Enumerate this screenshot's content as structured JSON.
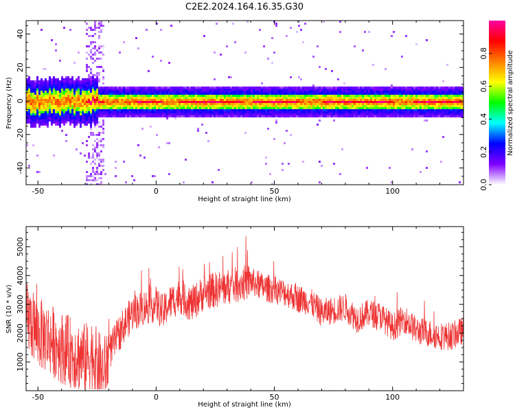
{
  "title": "C2E2.2024.164.16.35.G30",
  "chart_data": [
    {
      "type": "heatmap",
      "title": "",
      "xlabel": "Height of straight line (km)",
      "ylabel": "Frequency (Hz)",
      "xlim": [
        -55,
        130
      ],
      "ylim": [
        -50,
        48
      ],
      "x_ticks": [
        -50,
        0,
        50,
        100
      ],
      "y_ticks": [
        -40,
        -20,
        0,
        20,
        40
      ],
      "x_tick_labels": [
        "-50",
        "0",
        "50",
        "100"
      ],
      "y_tick_labels": [
        "-40",
        "-20",
        "0",
        "20",
        "40"
      ],
      "description_values": {
        "center_frequency_hz": 0,
        "band_halfwidth_hz": 4,
        "peak_segments_km": [
          [
            -30,
            -22
          ],
          [
            -8,
            2
          ],
          [
            10,
            35
          ],
          [
            40,
            60
          ],
          [
            70,
            100
          ],
          [
            108,
            128
          ]
        ]
      },
      "colorbar": {
        "label": "Normalized spectral amplitude",
        "range": [
          0.0,
          1.0
        ],
        "ticks": [
          0.0,
          0.2,
          0.4,
          0.6,
          0.8
        ],
        "tick_labels": [
          "0.0",
          "0.2",
          "0.4",
          "0.6",
          "0.8"
        ],
        "colormap": [
          "#ffffff",
          "#8000ff",
          "#0000ff",
          "#00ffff",
          "#00ff00",
          "#ffff00",
          "#ff8000",
          "#ff0000",
          "#ff00a0"
        ]
      },
      "grid": false
    },
    {
      "type": "line",
      "title": "",
      "xlabel": "Height of straight line (km)",
      "ylabel": "SNR (10 * v/v)",
      "xlim": [
        -55,
        130
      ],
      "ylim": [
        0,
        5700
      ],
      "x_ticks": [
        -50,
        0,
        50,
        100
      ],
      "y_ticks": [
        1000,
        2000,
        3000,
        4000,
        5000
      ],
      "x_tick_labels": [
        "-50",
        "0",
        "50",
        "100"
      ],
      "y_tick_labels": [
        "1000",
        "2000",
        "3000",
        "4000",
        "5000"
      ],
      "color": "#ee3333",
      "grid": false,
      "series": [
        {
          "x": [
            -55,
            -50,
            -45,
            -40,
            -35,
            -30,
            -27,
            -25,
            -22,
            -20,
            -15,
            -10,
            -5,
            0,
            3,
            5,
            10,
            15,
            20,
            25,
            30,
            35,
            40,
            45,
            50,
            55,
            60,
            65,
            70,
            75,
            80,
            85,
            90,
            95,
            100,
            105,
            110,
            115,
            120,
            125,
            130
          ],
          "values": [
            2600,
            2000,
            1800,
            1500,
            1300,
            1100,
            1300,
            900,
            600,
            1300,
            2100,
            2700,
            2900,
            3000,
            2700,
            3000,
            3300,
            3000,
            3400,
            3500,
            3600,
            3700,
            3800,
            3600,
            3500,
            3400,
            3200,
            3100,
            2700,
            2800,
            2900,
            2500,
            2700,
            2600,
            2200,
            2500,
            2100,
            2000,
            1900,
            1900,
            2100
          ]
        }
      ]
    }
  ]
}
